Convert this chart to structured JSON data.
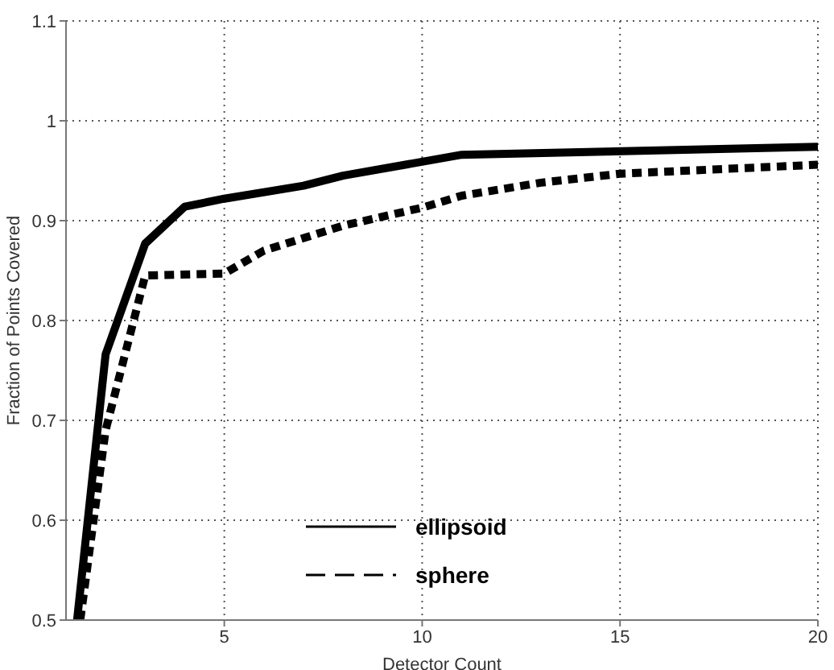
{
  "chart_data": {
    "type": "line",
    "xlabel": "Detector Count",
    "ylabel": "Fraction of Points Covered",
    "xlim": [
      1,
      20
    ],
    "xticks": [
      5,
      10,
      15,
      20
    ],
    "ylim": [
      0.5,
      1.1
    ],
    "yticks": [
      0.5,
      0.6,
      0.7,
      0.8,
      0.9,
      1,
      1.1
    ],
    "grid": true,
    "legend": "bottom",
    "marker": "none",
    "series": [
      {
        "name": "ellipsoid",
        "color": "#000000",
        "line_style": "solid",
        "x": [
          1.28,
          2,
          3,
          4,
          5,
          7,
          8,
          11,
          20
        ],
        "values": [
          0.5,
          0.766,
          0.877,
          0.914,
          0.922,
          0.935,
          0.945,
          0.966,
          0.974
        ]
      },
      {
        "name": "sphere",
        "color": "#000000",
        "line_style": "dashed",
        "x": [
          1.36,
          2,
          3,
          5,
          6,
          8,
          10,
          11,
          13,
          15,
          20
        ],
        "values": [
          0.5,
          0.69,
          0.845,
          0.847,
          0.87,
          0.895,
          0.913,
          0.925,
          0.938,
          0.947,
          0.956
        ]
      }
    ]
  }
}
